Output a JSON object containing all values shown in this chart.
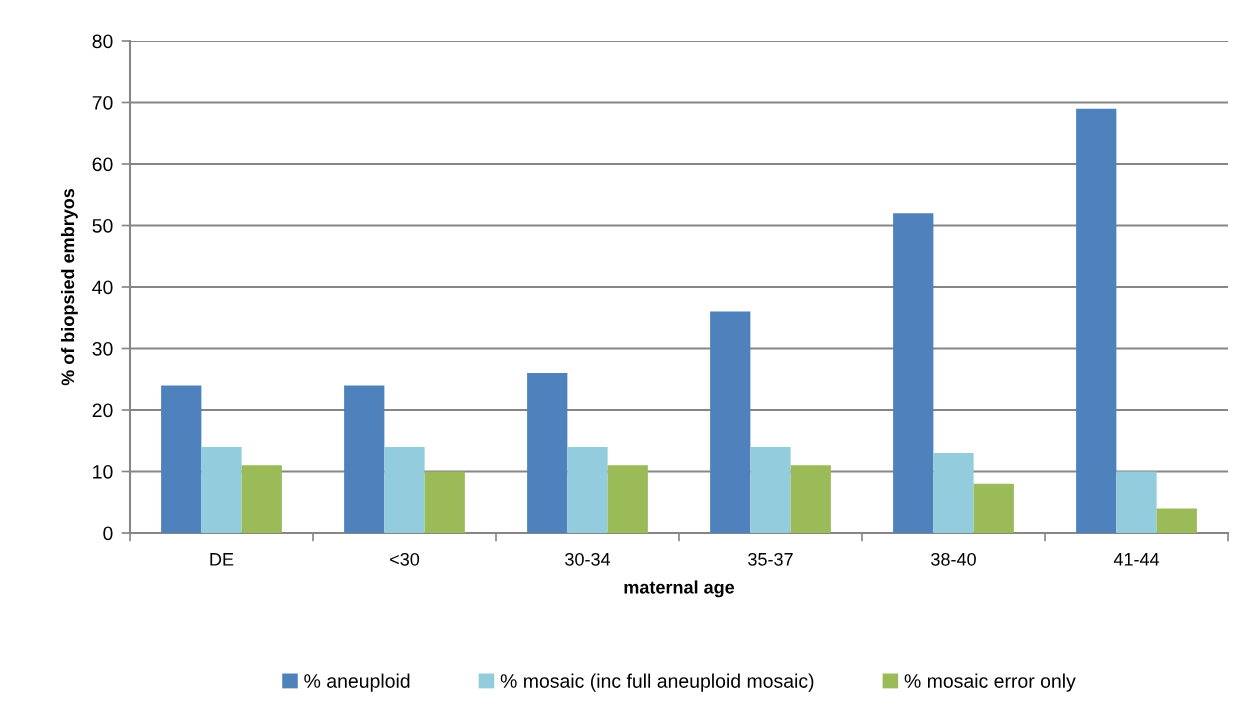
{
  "chart_data": {
    "type": "bar",
    "xlabel": "maternal age",
    "ylabel": "% of biopsied embryos",
    "categories": [
      "DE",
      "<30",
      "30-34",
      "35-37",
      "38-40",
      "41-44"
    ],
    "series": [
      {
        "name": "% aneuploid",
        "color": "#4f81bd",
        "values": [
          24,
          24,
          26,
          36,
          52,
          69
        ]
      },
      {
        "name": "% mosaic (inc full aneuploid mosaic)",
        "color": "#93cddd",
        "values": [
          14,
          14,
          14,
          14,
          13,
          10
        ]
      },
      {
        "name": "% mosaic error only",
        "color": "#9bbb59",
        "values": [
          11,
          10,
          11,
          11,
          8,
          4
        ]
      }
    ],
    "ylim": [
      0,
      80
    ],
    "yticks": [
      0,
      10,
      20,
      30,
      40,
      50,
      60,
      70,
      80
    ],
    "grid": "y",
    "legend": "bottom"
  }
}
